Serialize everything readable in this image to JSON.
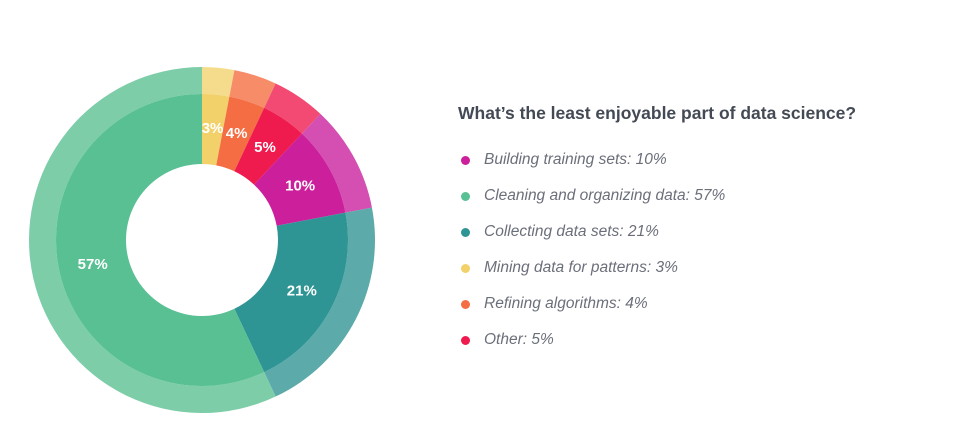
{
  "chart_data": {
    "type": "pie",
    "variant": "donut",
    "title": "What’s the least enjoyable part of data science?",
    "series": [
      {
        "name": "Mining data for patterns",
        "value": 3,
        "label": "3%",
        "legend": "Mining data for patterns: 3%",
        "color": "#f2d16b",
        "outer_color": "#f4dc8c"
      },
      {
        "name": "Refining algorithms",
        "value": 4,
        "label": "4%",
        "legend": "Refining algorithms: 4%",
        "color": "#f46d43",
        "outer_color": "#f78c68"
      },
      {
        "name": "Other",
        "value": 5,
        "label": "5%",
        "legend": "Other: 5%",
        "color": "#ef1a4e",
        "outer_color": "#f24a72"
      },
      {
        "name": "Building training sets",
        "value": 10,
        "label": "10%",
        "legend": "Building training sets: 10%",
        "color": "#cb1f9b",
        "outer_color": "#d44fb1"
      },
      {
        "name": "Collecting data sets",
        "value": 21,
        "label": "21%",
        "legend": "Collecting data sets: 21%",
        "color": "#2f9494",
        "outer_color": "#5caaaa"
      },
      {
        "name": "Cleaning and organizing data",
        "value": 57,
        "label": "57%",
        "legend": "Cleaning and organizing data: 57%",
        "color": "#58c093",
        "outer_color": "#7dcda9"
      }
    ],
    "legend_order": [
      "Building training sets",
      "Cleaning and organizing data",
      "Collecting data sets",
      "Mining data for patterns",
      "Refining algorithms",
      "Other"
    ],
    "legend_position": "right"
  }
}
